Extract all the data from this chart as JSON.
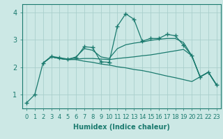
{
  "background_color": "#cce8e5",
  "grid_color": "#aacfcc",
  "line_color": "#1a7a6e",
  "xlabel": "Humidex (Indice chaleur)",
  "xlabel_fontsize": 7,
  "tick_fontsize": 6,
  "ylim": [
    0.5,
    4.3
  ],
  "xlim": [
    -0.5,
    23.5
  ],
  "yticks": [
    1,
    2,
    3,
    4
  ],
  "xticks": [
    0,
    1,
    2,
    3,
    4,
    5,
    6,
    7,
    8,
    9,
    10,
    11,
    12,
    13,
    14,
    15,
    16,
    17,
    18,
    19,
    20,
    21,
    22,
    23
  ],
  "lines": [
    {
      "x": [
        0,
        1,
        2,
        3,
        4,
        5,
        6,
        7,
        8,
        9,
        10,
        11,
        12,
        13,
        14,
        15,
        16,
        17,
        18,
        19,
        20,
        21,
        22,
        23
      ],
      "y": [
        0.7,
        1.0,
        2.15,
        2.4,
        2.35,
        2.3,
        2.35,
        2.75,
        2.72,
        2.2,
        2.18,
        3.5,
        3.95,
        3.75,
        2.95,
        3.05,
        3.05,
        3.2,
        3.15,
        2.8,
        2.42,
        1.65,
        1.82,
        1.35
      ],
      "has_markers": true
    },
    {
      "x": [
        2,
        3,
        4,
        5,
        6,
        7,
        8,
        9,
        10,
        11,
        12,
        13,
        14,
        15,
        16,
        17,
        18,
        19,
        20,
        21,
        22,
        23
      ],
      "y": [
        2.15,
        2.38,
        2.32,
        2.28,
        2.38,
        2.68,
        2.62,
        2.38,
        2.32,
        2.68,
        2.82,
        2.88,
        2.92,
        2.98,
        3.02,
        3.05,
        3.05,
        2.9,
        2.42,
        1.65,
        1.82,
        1.35
      ],
      "has_markers": false
    },
    {
      "x": [
        2,
        3,
        4,
        5,
        6,
        7,
        8,
        9,
        10,
        11,
        12,
        13,
        14,
        15,
        16,
        17,
        18,
        19,
        20,
        21,
        22,
        23
      ],
      "y": [
        2.15,
        2.38,
        2.32,
        2.28,
        2.3,
        2.32,
        2.32,
        2.3,
        2.28,
        2.32,
        2.35,
        2.38,
        2.42,
        2.45,
        2.5,
        2.55,
        2.6,
        2.65,
        2.42,
        1.65,
        1.82,
        1.35
      ],
      "has_markers": false
    },
    {
      "x": [
        2,
        3,
        4,
        5,
        6,
        7,
        8,
        9,
        10,
        11,
        12,
        13,
        14,
        15,
        16,
        17,
        18,
        19,
        20,
        21,
        22,
        23
      ],
      "y": [
        2.15,
        2.38,
        2.32,
        2.28,
        2.28,
        2.22,
        2.18,
        2.12,
        2.08,
        2.02,
        1.98,
        1.92,
        1.88,
        1.82,
        1.75,
        1.68,
        1.62,
        1.55,
        1.48,
        1.65,
        1.82,
        1.35
      ],
      "has_markers": false
    }
  ]
}
